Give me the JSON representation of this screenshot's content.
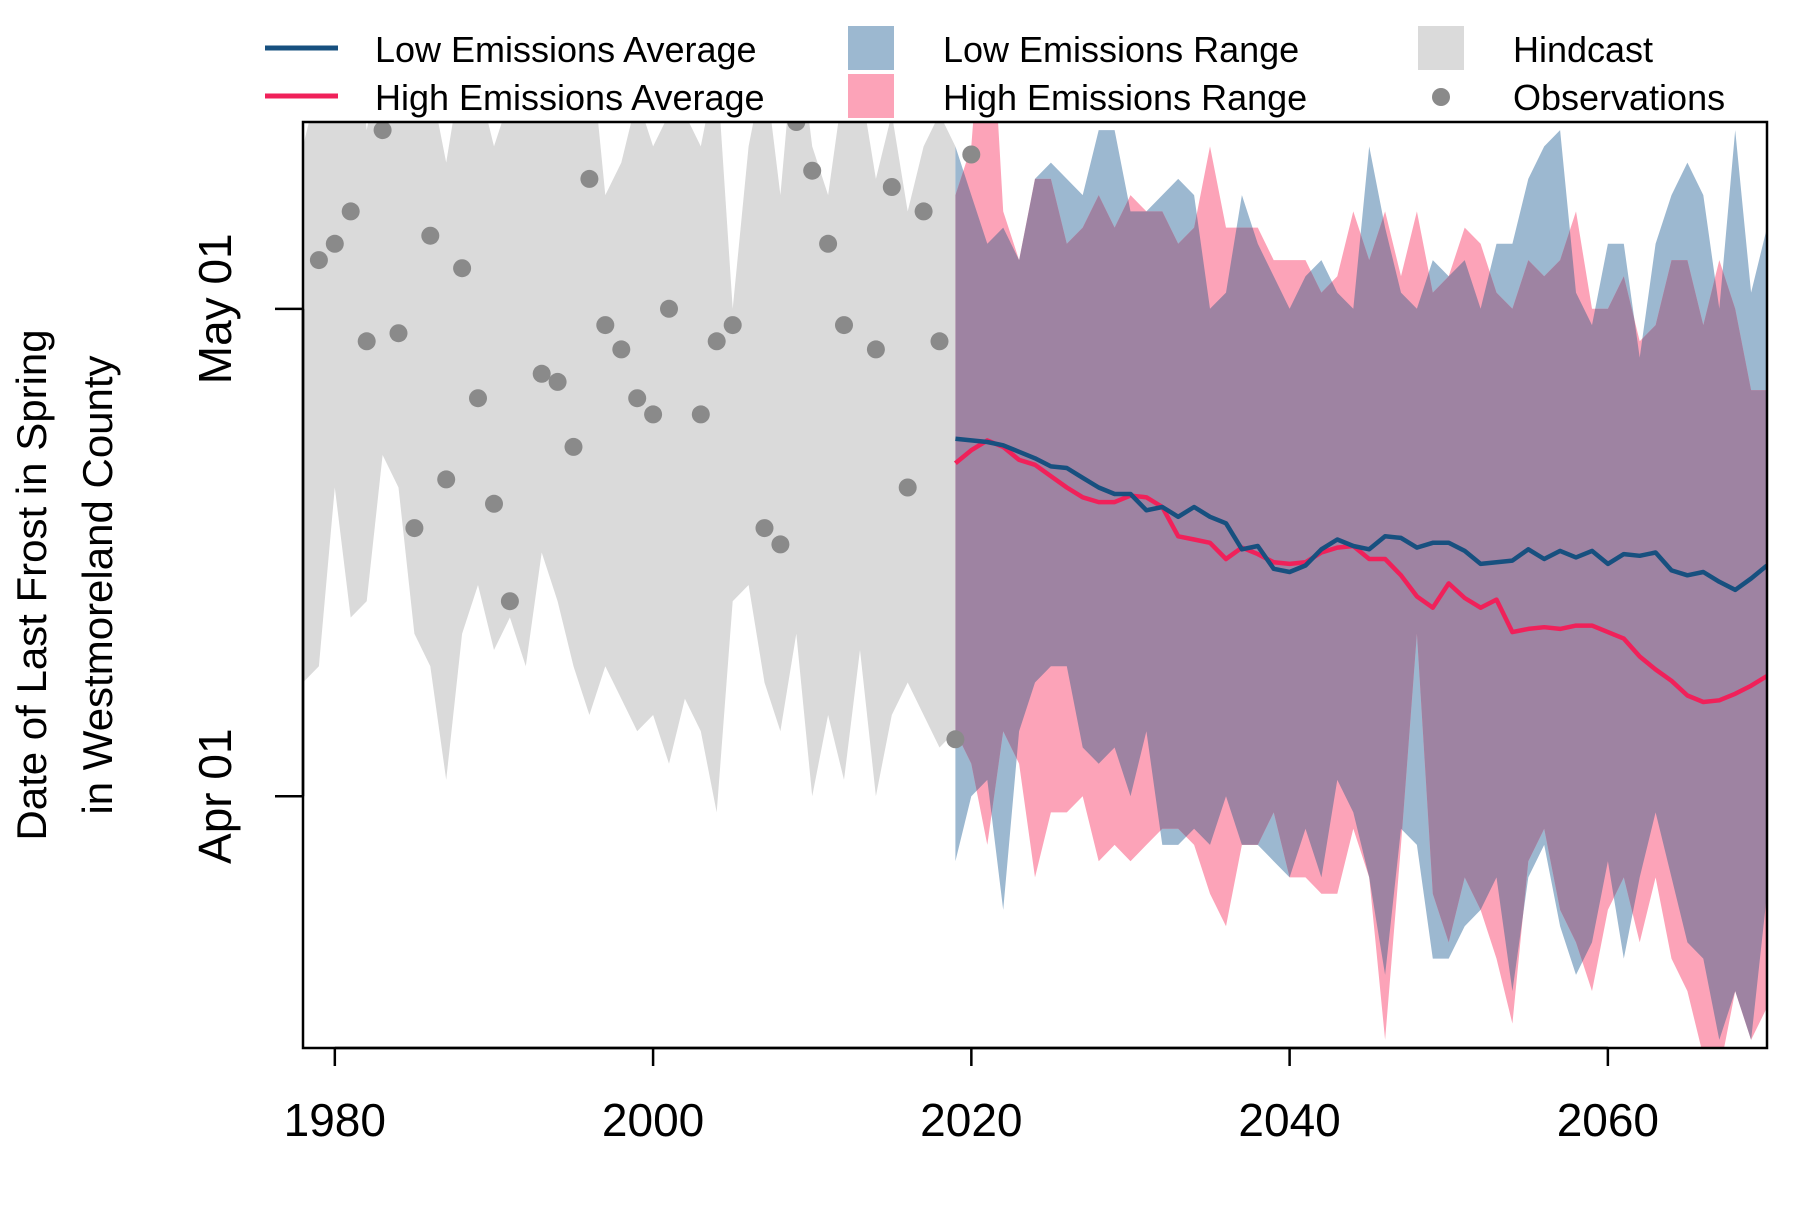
{
  "chart_data": {
    "type": "area",
    "ylabel_line1": "Date of Last Frost in Spring",
    "ylabel_line2": "in Westmoreland County",
    "xlim": [
      1978,
      2070
    ],
    "ylim": [
      -15.5,
      41.5
    ],
    "y_units": "days after April 1",
    "x_ticks": [
      {
        "value": 1980,
        "label": "1980"
      },
      {
        "value": 2000,
        "label": "2000"
      },
      {
        "value": 2020,
        "label": "2020"
      },
      {
        "value": 2040,
        "label": "2040"
      },
      {
        "value": 2060,
        "label": "2060"
      }
    ],
    "y_ticks": [
      {
        "value": 0,
        "label": "Apr 01"
      },
      {
        "value": 30,
        "label": "May 01"
      }
    ],
    "legend": [
      {
        "label": "Low Emissions Average",
        "kind": "line",
        "color": "#17507f"
      },
      {
        "label": "High Emissions Average",
        "kind": "line",
        "color": "#f0215a"
      },
      {
        "label": "Low Emissions Range",
        "kind": "fill",
        "color": "#9cb8d0"
      },
      {
        "label": "High Emissions Range",
        "kind": "fill",
        "color": "#fca3b8"
      },
      {
        "label": "Hindcast",
        "kind": "fill",
        "color": "#dadada"
      },
      {
        "label": "Observations",
        "kind": "point",
        "color": "#8a8a8a"
      }
    ],
    "colors": {
      "low_avg": "#17507f",
      "high_avg": "#f0215a",
      "low_range": "#9cb8d0",
      "high_range": "#fca3b8",
      "overlap": "#9e83a2",
      "hindcast": "#dadada",
      "observations": "#8a8a8a"
    },
    "hindcast": {
      "x": [
        1978,
        1979,
        1980,
        1981,
        1982,
        1983,
        1984,
        1985,
        1986,
        1987,
        1988,
        1989,
        1990,
        1991,
        1992,
        1993,
        1994,
        1995,
        1996,
        1997,
        1998,
        1999,
        2000,
        2001,
        2002,
        2003,
        2004,
        2005,
        2006,
        2007,
        2008,
        2009,
        2010,
        2011,
        2012,
        2013,
        2014,
        2015,
        2016,
        2017,
        2018,
        2019
      ],
      "upper": [
        40,
        44,
        46,
        51,
        41,
        46,
        46,
        43,
        44,
        39,
        45,
        44,
        40,
        43,
        45,
        48,
        42,
        43,
        47,
        37,
        39,
        43,
        40,
        42,
        42,
        40,
        45,
        30,
        40,
        45,
        37,
        48,
        40,
        37,
        44,
        44,
        38,
        42,
        36,
        40,
        42,
        40
      ],
      "lower": [
        7,
        8,
        19,
        11,
        12,
        21,
        19,
        10,
        8,
        1,
        10,
        13,
        9,
        11,
        8,
        15,
        12,
        8,
        5,
        8,
        6,
        4,
        5,
        2,
        6,
        4,
        -1,
        12,
        13,
        7,
        4,
        10,
        0,
        5,
        1,
        9,
        0,
        5,
        7,
        5,
        3,
        4
      ]
    },
    "observations": {
      "x": [
        1979,
        1980,
        1981,
        1982,
        1983,
        1984,
        1985,
        1986,
        1987,
        1988,
        1989,
        1990,
        1991,
        1992,
        1993,
        1994,
        1995,
        1996,
        1997,
        1998,
        1999,
        2000,
        2001,
        2002,
        2003,
        2004,
        2005,
        2006,
        2007,
        2008,
        2009,
        2010,
        2011,
        2012,
        2013,
        2014,
        2015,
        2016,
        2017,
        2018,
        2019,
        2020
      ],
      "y": [
        33,
        34,
        36,
        28,
        41,
        28.5,
        16.5,
        34.5,
        19.5,
        32.5,
        24.5,
        18,
        12,
        52.5,
        26,
        25.5,
        21.5,
        38,
        29,
        27.5,
        24.5,
        23.5,
        30,
        46,
        23.5,
        28,
        29,
        50,
        16.5,
        15.5,
        41.5,
        38.5,
        34,
        29,
        54.5,
        27.5,
        37.5,
        19,
        36,
        28,
        3.5,
        39.5
      ]
    },
    "low_emissions": {
      "x": [
        2019,
        2020,
        2021,
        2022,
        2023,
        2024,
        2025,
        2026,
        2027,
        2028,
        2029,
        2030,
        2031,
        2032,
        2033,
        2034,
        2035,
        2036,
        2037,
        2038,
        2039,
        2040,
        2041,
        2042,
        2043,
        2044,
        2045,
        2046,
        2047,
        2048,
        2049,
        2050,
        2051,
        2052,
        2053,
        2054,
        2055,
        2056,
        2057,
        2058,
        2059,
        2060,
        2061,
        2062,
        2063,
        2064,
        2065,
        2066,
        2067,
        2068,
        2069,
        2070
      ],
      "average": [
        22,
        21.9,
        21.8,
        21.6,
        21.2,
        20.8,
        20.3,
        20.2,
        19.6,
        19,
        18.6,
        18.6,
        17.6,
        17.8,
        17.2,
        17.8,
        17.2,
        16.8,
        15.2,
        15.4,
        14,
        13.8,
        14.2,
        15.2,
        15.8,
        15.4,
        15.2,
        16,
        15.9,
        15.3,
        15.6,
        15.6,
        15.1,
        14.3,
        14.4,
        14.5,
        15.2,
        14.6,
        15.1,
        14.7,
        15.1,
        14.3,
        14.9,
        14.8,
        15,
        13.9,
        13.6,
        13.8,
        13.2,
        12.7,
        13.4,
        14.2
      ],
      "upper": [
        40,
        37,
        34,
        35,
        33,
        38,
        39,
        38,
        37,
        41,
        41,
        36,
        36,
        37,
        38,
        37,
        30,
        31,
        37,
        34,
        32,
        30,
        32,
        33,
        31,
        30,
        40,
        35,
        31,
        30,
        33,
        32,
        33,
        30,
        34,
        34,
        38,
        40,
        41,
        31,
        29,
        34,
        34,
        27,
        34,
        37,
        39,
        37,
        30,
        41,
        31,
        35
      ],
      "lower": [
        -4,
        0,
        1,
        -7,
        4,
        7,
        8,
        8,
        3,
        2,
        3,
        0,
        4,
        -3,
        -3,
        -2,
        -3,
        0,
        -3,
        -3,
        -4,
        -5,
        -2,
        -5,
        1,
        -1,
        -5,
        -11,
        -2,
        -3,
        -10,
        -10,
        -8,
        -7,
        -5,
        -12,
        -5,
        -3,
        -8,
        -11,
        -9,
        -4,
        -10,
        -5,
        -1,
        -5,
        -9,
        -10,
        -15,
        -12,
        -15,
        -6
      ]
    },
    "high_emissions": {
      "x": [
        2019,
        2020,
        2021,
        2022,
        2023,
        2024,
        2025,
        2026,
        2027,
        2028,
        2029,
        2030,
        2031,
        2032,
        2033,
        2034,
        2035,
        2036,
        2037,
        2038,
        2039,
        2040,
        2041,
        2042,
        2043,
        2044,
        2045,
        2046,
        2047,
        2048,
        2049,
        2050,
        2051,
        2052,
        2053,
        2054,
        2055,
        2056,
        2057,
        2058,
        2059,
        2060,
        2061,
        2062,
        2063,
        2064,
        2065,
        2066,
        2067,
        2068,
        2069,
        2070
      ],
      "average": [
        20.5,
        21.3,
        21.9,
        21.5,
        20.7,
        20.4,
        19.7,
        19,
        18.4,
        18.1,
        18.1,
        18.5,
        18.4,
        17.8,
        16,
        15.8,
        15.6,
        14.6,
        15.3,
        14.9,
        14.4,
        14.3,
        14.4,
        15,
        15.3,
        15.4,
        14.6,
        14.6,
        13.6,
        12.3,
        11.6,
        13.1,
        12.2,
        11.6,
        12.1,
        10.1,
        10.3,
        10.4,
        10.3,
        10.5,
        10.5,
        10.1,
        9.7,
        8.6,
        7.8,
        7.1,
        6.2,
        5.8,
        5.9,
        6.3,
        6.8,
        7.4
      ],
      "upper": [
        37,
        40,
        53,
        36,
        33,
        38,
        38,
        34,
        35,
        37,
        35,
        37,
        36,
        36,
        34,
        35,
        40,
        35,
        35,
        35,
        33,
        33,
        33,
        31,
        32,
        36,
        33,
        36,
        32,
        36,
        31,
        32,
        35,
        34,
        31,
        30,
        33,
        32,
        33,
        36,
        30,
        30,
        32,
        28,
        29,
        33,
        33,
        29,
        33,
        30,
        25,
        25
      ],
      "lower": [
        4,
        2,
        -3,
        4,
        2,
        -5,
        -1,
        -1,
        0,
        -4,
        -3,
        -4,
        -3,
        -2,
        -2,
        -3,
        -6,
        -8,
        -3,
        -3,
        -1,
        -5,
        -5,
        -6,
        -6,
        -2,
        -5,
        -15,
        -3,
        10,
        -6,
        -9,
        -5,
        -7,
        -10,
        -14,
        -4,
        -2,
        -7,
        -9,
        -12,
        -7,
        -5,
        -9,
        -5,
        -10,
        -12,
        -16,
        -17,
        -12,
        -15,
        -13
      ]
    }
  }
}
